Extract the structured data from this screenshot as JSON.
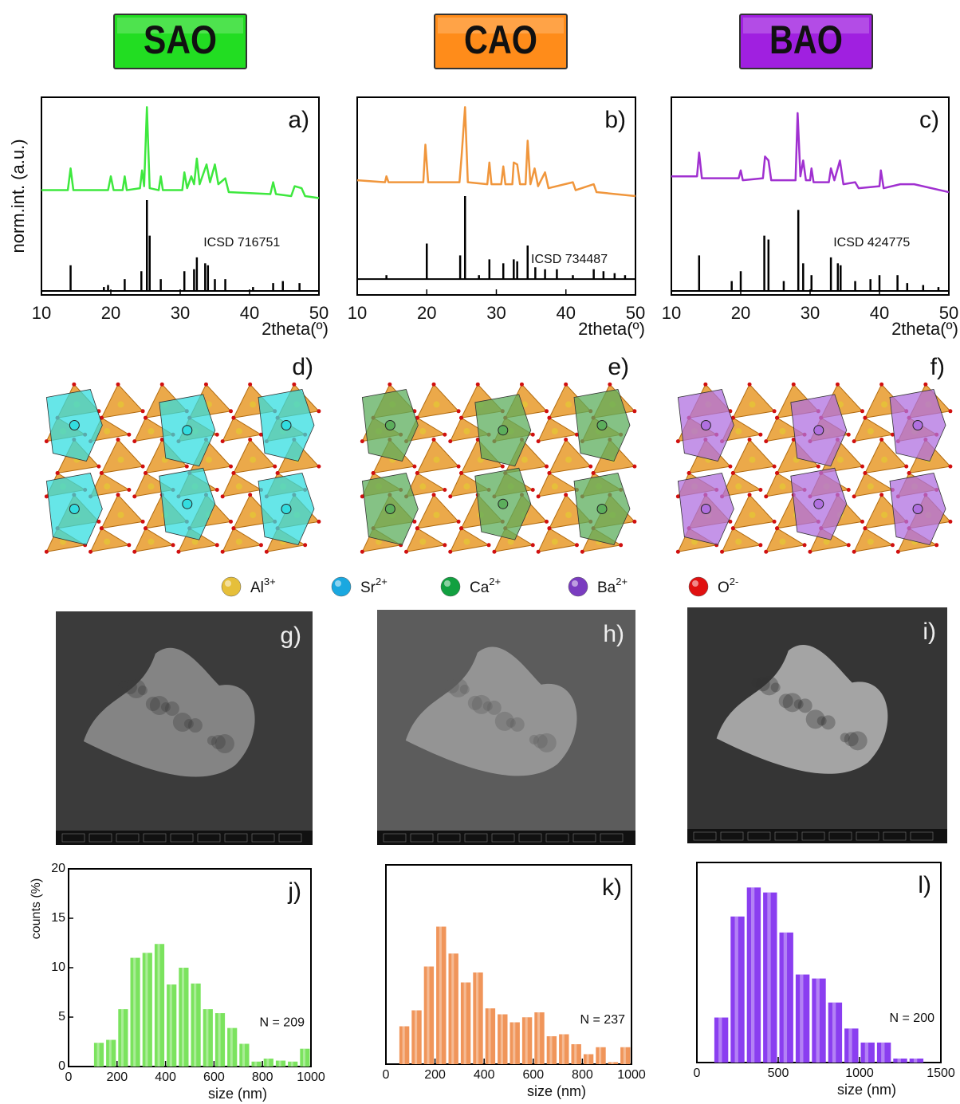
{
  "headers": [
    {
      "label": "SAO",
      "color": "#22dd22"
    },
    {
      "label": "CAO",
      "color": "#ff8c1a"
    },
    {
      "label": "BAO",
      "color": "#a020e0"
    }
  ],
  "structures": [
    {
      "label": "d)",
      "color": "#33dde0"
    },
    {
      "label": "e)",
      "color": "#5cae5c"
    },
    {
      "label": "f)",
      "color": "#b070e0"
    }
  ],
  "ion_legend": [
    {
      "symbol": "Al",
      "charge": "3+",
      "color": "#e6bf3a"
    },
    {
      "symbol": "Sr",
      "charge": "2+",
      "color": "#1aa8e0"
    },
    {
      "symbol": "Ca",
      "charge": "2+",
      "color": "#12a040"
    },
    {
      "symbol": "Ba",
      "charge": "2+",
      "color": "#7a3cc0"
    },
    {
      "symbol": "O",
      "charge": "2-",
      "color": "#e01010"
    }
  ],
  "sem_images": [
    {
      "label": "g)"
    },
    {
      "label": "h)"
    },
    {
      "label": "i)"
    }
  ],
  "chart_data": [
    {
      "type": "xrd",
      "panel_label": "a)",
      "y_label": "norm.int. (a.u.)",
      "x_label": "2theta(º)",
      "xlim": [
        10,
        50
      ],
      "xticks": [
        10,
        20,
        30,
        40,
        50
      ],
      "ylim": [
        0,
        1
      ],
      "series": [
        {
          "style": "line",
          "color": "#3ee83e",
          "x": [
            10,
            13.8,
            14.2,
            14.6,
            19.6,
            20,
            20.4,
            21.7,
            22,
            22.3,
            24.2,
            24.5,
            24.8,
            25.2,
            25.6,
            26.9,
            27.2,
            27.5,
            30.3,
            30.6,
            31,
            31.6,
            32,
            32.4,
            32.8,
            33.8,
            34.3,
            35,
            35.5,
            36.5,
            37,
            43,
            43.4,
            43.8,
            46,
            46.5,
            47.5,
            48,
            50
          ],
          "values": [
            0.53,
            0.53,
            0.64,
            0.53,
            0.53,
            0.6,
            0.53,
            0.53,
            0.6,
            0.53,
            0.54,
            0.63,
            0.55,
            0.95,
            0.54,
            0.53,
            0.6,
            0.53,
            0.53,
            0.62,
            0.54,
            0.6,
            0.56,
            0.69,
            0.56,
            0.66,
            0.57,
            0.66,
            0.56,
            0.59,
            0.52,
            0.51,
            0.57,
            0.51,
            0.5,
            0.55,
            0.54,
            0.5,
            0.49
          ]
        },
        {
          "style": "stick",
          "color": "#000000",
          "offset": 0.02,
          "annotation": "ICSD 716751",
          "x": [
            14.2,
            19,
            19.6,
            22,
            24.4,
            25.2,
            25.6,
            27.2,
            30.6,
            32,
            32.4,
            33.6,
            34,
            35,
            36.5,
            40.5,
            43.4,
            44.8,
            47.2
          ],
          "values": [
            0.15,
            0.04,
            0.05,
            0.08,
            0.12,
            0.48,
            0.3,
            0.08,
            0.12,
            0.13,
            0.19,
            0.16,
            0.15,
            0.08,
            0.08,
            0.04,
            0.06,
            0.07,
            0.06
          ]
        }
      ]
    },
    {
      "type": "xrd",
      "panel_label": "b)",
      "x_label": "2theta(º)",
      "xlim": [
        10,
        50
      ],
      "xticks": [
        10,
        20,
        30,
        40,
        50
      ],
      "ylim": [
        0,
        1
      ],
      "series": [
        {
          "style": "line",
          "color": "#f0963c",
          "x": [
            10,
            14,
            14.2,
            14.5,
            19.5,
            19.8,
            20.2,
            24.7,
            25,
            25.5,
            25.9,
            28.7,
            29,
            29.3,
            30.7,
            31,
            31.3,
            32.3,
            32.5,
            33,
            33.4,
            34.2,
            34.5,
            34.9,
            35.5,
            36,
            37,
            37.5,
            41,
            41.4,
            44,
            44.4,
            50
          ],
          "values": [
            0.58,
            0.57,
            0.6,
            0.57,
            0.57,
            0.76,
            0.57,
            0.57,
            0.7,
            0.95,
            0.57,
            0.56,
            0.67,
            0.56,
            0.56,
            0.65,
            0.56,
            0.56,
            0.67,
            0.66,
            0.56,
            0.56,
            0.78,
            0.56,
            0.64,
            0.55,
            0.62,
            0.54,
            0.57,
            0.53,
            0.56,
            0.52,
            0.5
          ]
        },
        {
          "style": "stick",
          "color": "#000000",
          "offset": 0.08,
          "annotation": "ICSD 734487",
          "x": [
            14.2,
            20,
            24.8,
            25.5,
            27.5,
            29,
            31,
            32.5,
            33,
            34.5,
            35.6,
            37,
            38.7,
            41,
            44,
            45.4,
            47,
            48.5
          ],
          "values": [
            0.1,
            0.26,
            0.2,
            0.5,
            0.1,
            0.18,
            0.16,
            0.18,
            0.17,
            0.25,
            0.14,
            0.13,
            0.13,
            0.1,
            0.13,
            0.12,
            0.11,
            0.1
          ]
        }
      ]
    },
    {
      "type": "xrd",
      "panel_label": "c)",
      "x_label": "2theta(º)",
      "xlim": [
        10,
        50
      ],
      "xticks": [
        10,
        20,
        30,
        40,
        50
      ],
      "ylim": [
        0,
        1
      ],
      "series": [
        {
          "style": "line",
          "color": "#a030d0",
          "x": [
            10,
            13.7,
            14,
            14.4,
            19.7,
            20,
            20.3,
            23.2,
            23.5,
            24,
            24.4,
            27.9,
            28.2,
            28.6,
            29,
            29.4,
            30,
            30.2,
            30.5,
            32.7,
            33,
            33.5,
            34.3,
            34.8,
            36.5,
            37,
            40,
            40.2,
            40.6,
            43,
            45,
            50
          ],
          "values": [
            0.6,
            0.6,
            0.72,
            0.59,
            0.59,
            0.63,
            0.58,
            0.59,
            0.7,
            0.68,
            0.58,
            0.58,
            0.92,
            0.6,
            0.68,
            0.58,
            0.58,
            0.64,
            0.57,
            0.57,
            0.64,
            0.58,
            0.68,
            0.56,
            0.57,
            0.54,
            0.55,
            0.63,
            0.54,
            0.56,
            0.56,
            0.52
          ]
        },
        {
          "style": "stick",
          "color": "#000000",
          "offset": 0.02,
          "annotation": "ICSD 424775",
          "x": [
            14,
            18.7,
            20,
            23.4,
            24,
            26.2,
            28.3,
            29,
            30.2,
            33,
            34,
            34.4,
            36.5,
            38.7,
            40,
            42.6,
            44,
            46.3,
            48.5
          ],
          "values": [
            0.2,
            0.07,
            0.12,
            0.3,
            0.28,
            0.07,
            0.43,
            0.16,
            0.1,
            0.19,
            0.16,
            0.15,
            0.07,
            0.08,
            0.1,
            0.1,
            0.06,
            0.05,
            0.04
          ]
        }
      ]
    },
    {
      "type": "histogram",
      "panel_label": "j)",
      "y_label": "counts (%)",
      "x_label": "size (nm)",
      "annotation": "N = 209",
      "color": "#7be35e",
      "xlim": [
        0,
        1000
      ],
      "xticks": [
        0,
        200,
        400,
        600,
        800,
        1000
      ],
      "ylim": [
        0,
        20
      ],
      "yticks": [
        0,
        5,
        10,
        15,
        20
      ],
      "bins": [
        100,
        150,
        200,
        250,
        300,
        350,
        400,
        450,
        500,
        550,
        600,
        650,
        700,
        750,
        800,
        850,
        900,
        950,
        1000
      ],
      "counts": [
        2.4,
        2.7,
        5.8,
        11,
        11.5,
        12.4,
        8.3,
        10,
        8.4,
        5.8,
        5.4,
        3.9,
        2.3,
        0.5,
        0.8,
        0.6,
        0.5,
        1.8
      ]
    },
    {
      "type": "histogram",
      "panel_label": "k)",
      "x_label": "size (nm)",
      "annotation": "N = 237",
      "color": "#f0955a",
      "xlim": [
        0,
        1000
      ],
      "xticks": [
        0,
        200,
        400,
        600,
        800,
        1000
      ],
      "ylim": [
        0,
        20
      ],
      "bins": [
        50,
        100,
        150,
        200,
        250,
        300,
        350,
        400,
        450,
        500,
        550,
        600,
        650,
        700,
        750,
        800,
        850,
        900,
        950,
        1000
      ],
      "counts": [
        3.8,
        5.4,
        9.8,
        13.8,
        11.1,
        8.2,
        9.2,
        5.6,
        5.0,
        4.2,
        4.7,
        5.2,
        2.8,
        3.0,
        2.0,
        1.0,
        1.7,
        0.2,
        1.7
      ]
    },
    {
      "type": "histogram",
      "panel_label": "l)",
      "x_label": "size (nm)",
      "annotation": "N = 200",
      "color": "#8a3ef0",
      "xlim": [
        0,
        1500
      ],
      "xticks": [
        0,
        500,
        1000,
        1500
      ],
      "ylim": [
        0,
        20
      ],
      "bins": [
        100,
        200,
        300,
        400,
        500,
        600,
        700,
        800,
        900,
        1000,
        1100,
        1200,
        1300,
        1400
      ],
      "counts": [
        4.5,
        14.6,
        17.5,
        17.0,
        13.0,
        8.8,
        8.4,
        6.0,
        3.4,
        2.0,
        2.0,
        0.4,
        0.4
      ]
    }
  ]
}
